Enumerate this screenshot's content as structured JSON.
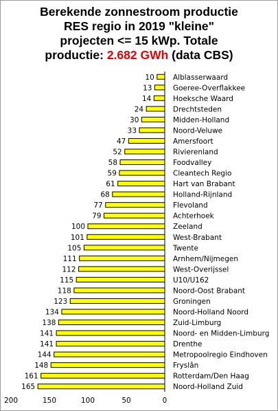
{
  "title": {
    "line1": "Berekende zonnestroom productie",
    "line2": "RES regio in 2019 \"kleine\"",
    "line3": "projecten <= 15 kWp. Totale",
    "line4_prefix": "productie: ",
    "line4_highlight": "2.682 GWh",
    "line4_suffix": " (data CBS)"
  },
  "colors": {
    "bar_fill": "#ffff00",
    "bar_stroke": "#000000",
    "highlight": "#e60000",
    "axis": "#000000"
  },
  "chart_data": {
    "type": "bar",
    "orientation": "horizontal",
    "x_reversed": true,
    "title": "Berekende zonnestroom productie RES regio in 2019 \"kleine\" projecten <= 15 kWp. Totale productie: 2.682 GWh (data CBS)",
    "xlim": [
      0,
      200
    ],
    "xticks": [
      200,
      150,
      100,
      50,
      0
    ],
    "grid": false,
    "data_labels": true,
    "categories": [
      "Alblasserwaard",
      "Goeree-Overflakkee",
      "Hoeksche Waard",
      "Drechtsteden",
      "Midden-Holland",
      "Noord-Veluwe",
      "Amersfoort",
      "Rivierenland",
      "Foodvalley",
      "Cleantech Regio",
      "Hart van Brabant",
      "Holland-Rijnland",
      "Flevoland",
      "Achterhoek",
      "Zeeland",
      "West-Brabant",
      "Twente",
      "Arnhem/Nijmegen",
      "West-Overijssel",
      "U10/U162",
      "Noord-Oost Brabant",
      "Groningen",
      "Noord-Holland Noord",
      "Zuid-Limburg",
      "Noord- en Midden-Limburg",
      "Drenthe",
      "Metropoolregio Eindhoven",
      "Fryslân",
      "Rotterdam/Den Haag",
      "Noord-Holland Zuid"
    ],
    "values": [
      10,
      13,
      14,
      24,
      30,
      33,
      47,
      52,
      58,
      59,
      61,
      68,
      77,
      79,
      100,
      101,
      105,
      111,
      112,
      115,
      118,
      123,
      134,
      138,
      141,
      141,
      144,
      148,
      161,
      165
    ]
  }
}
